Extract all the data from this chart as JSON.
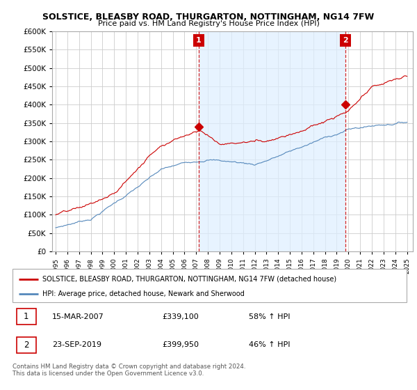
{
  "title": "SOLSTICE, BLEASBY ROAD, THURGARTON, NOTTINGHAM, NG14 7FW",
  "subtitle": "Price paid vs. HM Land Registry's House Price Index (HPI)",
  "red_label": "SOLSTICE, BLEASBY ROAD, THURGARTON, NOTTINGHAM, NG14 7FW (detached house)",
  "blue_label": "HPI: Average price, detached house, Newark and Sherwood",
  "ylim": [
    0,
    600000
  ],
  "ytick_values": [
    0,
    50000,
    100000,
    150000,
    200000,
    250000,
    300000,
    350000,
    400000,
    450000,
    500000,
    550000,
    600000
  ],
  "xlim_start": 1994.7,
  "xlim_end": 2025.5,
  "marker1_x": 2007.21,
  "marker1_y": 339100,
  "marker1_label": "1",
  "marker1_date": "15-MAR-2007",
  "marker1_price": "£339,100",
  "marker1_hpi": "58% ↑ HPI",
  "marker2_x": 2019.73,
  "marker2_y": 399950,
  "marker2_label": "2",
  "marker2_date": "23-SEP-2019",
  "marker2_price": "£399,950",
  "marker2_hpi": "46% ↑ HPI",
  "footnote": "Contains HM Land Registry data © Crown copyright and database right 2024.\nThis data is licensed under the Open Government Licence v3.0.",
  "background_color": "#ffffff",
  "red_color": "#cc0000",
  "blue_color": "#5588bb",
  "highlight_color": "#ddeeff",
  "grid_color": "#cccccc",
  "label_box_color": "#cc0000"
}
